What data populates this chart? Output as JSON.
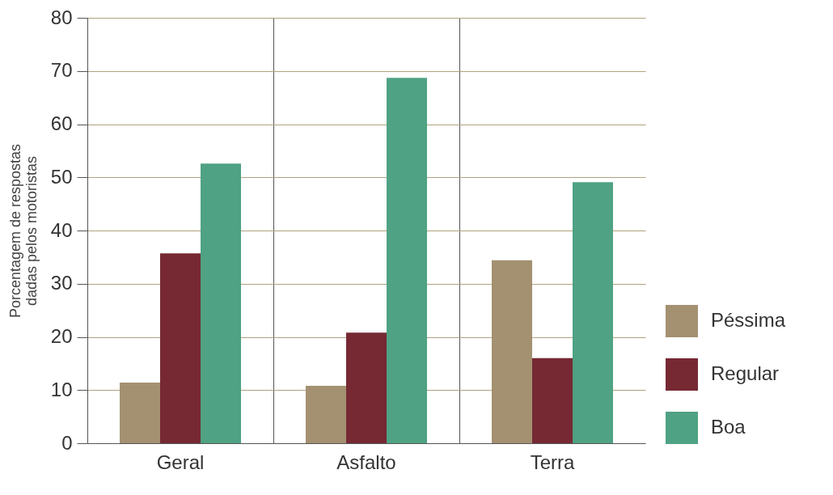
{
  "chart_data": {
    "type": "bar",
    "ylabel": "Porcentagem de respostas\ndadas pelos motoristas",
    "categories": [
      "Geral",
      "Asfalto",
      "Terra"
    ],
    "series": [
      {
        "name": "Péssima",
        "color": "#a39171",
        "values": [
          11.4,
          10.8,
          34.4
        ]
      },
      {
        "name": "Regular",
        "color": "#762933",
        "values": [
          35.7,
          20.8,
          16.0
        ]
      },
      {
        "name": "Boa",
        "color": "#4fa283",
        "values": [
          52.6,
          68.7,
          49.1
        ]
      }
    ],
    "ylim": [
      0,
      80
    ],
    "yticks": [
      0,
      10,
      20,
      30,
      40,
      50,
      60,
      70,
      80
    ],
    "grid": true,
    "legend": "right"
  }
}
